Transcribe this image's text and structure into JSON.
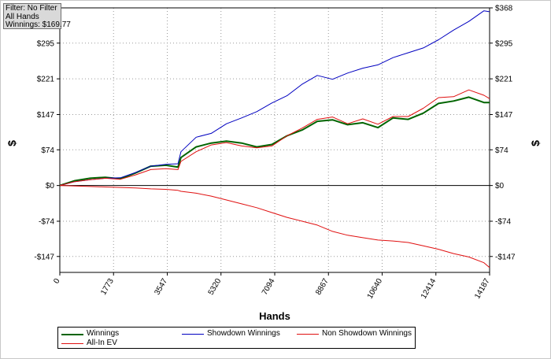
{
  "filter_box": {
    "lines": [
      "Filter: No Filter",
      "All Hands",
      "Winnings: $169.77"
    ]
  },
  "chart_data": {
    "type": "line",
    "xlabel": "Hands",
    "ylabel": "$",
    "xlim": [
      0,
      14187
    ],
    "ylim": [
      -180,
      368
    ],
    "x_ticks": [
      0,
      1773,
      3547,
      5320,
      7094,
      8867,
      10640,
      12414,
      14187
    ],
    "x_tick_labels": [
      "0",
      "1773",
      "3547",
      "5320",
      "7094",
      "8867",
      "10640",
      "12414",
      "14187"
    ],
    "y_ticks": [
      368,
      295,
      221,
      147,
      74,
      0,
      -74,
      -147
    ],
    "y_tick_labels": [
      "$368",
      "$295",
      "$221",
      "$147",
      "$74",
      "$0",
      "-$74",
      "-$147"
    ],
    "grid": true,
    "legend_position": "bottom",
    "series": [
      {
        "name": "Winnings",
        "color": "#006400",
        "x": [
          0,
          500,
          1000,
          1500,
          2000,
          2500,
          3000,
          3500,
          3900,
          4000,
          4500,
          5000,
          5500,
          6000,
          6500,
          7000,
          7500,
          8000,
          8500,
          9000,
          9500,
          10000,
          10500,
          11000,
          11500,
          12000,
          12500,
          13000,
          13500,
          14000,
          14187
        ],
        "y": [
          0,
          10,
          15,
          17,
          14,
          26,
          40,
          42,
          38,
          58,
          80,
          88,
          92,
          88,
          80,
          85,
          103,
          115,
          133,
          136,
          126,
          130,
          120,
          140,
          137,
          150,
          170,
          175,
          183,
          172,
          172
        ]
      },
      {
        "name": "Showdown Winnings",
        "color": "#0000c0",
        "x": [
          0,
          500,
          1000,
          1500,
          2000,
          2500,
          3000,
          3500,
          3900,
          4000,
          4500,
          5000,
          5500,
          6000,
          6500,
          7000,
          7500,
          8000,
          8500,
          9000,
          9500,
          10000,
          10500,
          11000,
          11500,
          12000,
          12500,
          13000,
          13500,
          14000,
          14187
        ],
        "y": [
          0,
          8,
          12,
          15,
          16,
          27,
          40,
          44,
          45,
          70,
          100,
          108,
          128,
          140,
          153,
          171,
          186,
          210,
          228,
          220,
          233,
          243,
          250,
          265,
          275,
          285,
          302,
          322,
          340,
          362,
          360
        ]
      },
      {
        "name": "Non Showdown Winnings",
        "color": "#e01010",
        "x": [
          0,
          500,
          1000,
          1500,
          2000,
          2500,
          3000,
          3500,
          3900,
          4000,
          4500,
          5000,
          5500,
          6000,
          6500,
          7000,
          7500,
          8000,
          8500,
          9000,
          9500,
          10000,
          10500,
          11000,
          11500,
          12000,
          12500,
          13000,
          13500,
          14000,
          14187
        ],
        "y": [
          0,
          8,
          12,
          15,
          13,
          22,
          33,
          35,
          33,
          50,
          70,
          84,
          89,
          82,
          78,
          82,
          103,
          119,
          137,
          142,
          128,
          138,
          127,
          143,
          143,
          160,
          182,
          184,
          198,
          187,
          180
        ]
      },
      {
        "name": "All-In EV",
        "color": "#e01010",
        "x": [
          0,
          500,
          1000,
          1500,
          2000,
          2500,
          3000,
          3500,
          3900,
          4000,
          4500,
          5000,
          5500,
          6000,
          6500,
          7000,
          7500,
          8000,
          8500,
          9000,
          9500,
          10000,
          10500,
          11000,
          11500,
          12000,
          12500,
          13000,
          13500,
          14000,
          14187
        ],
        "y": [
          0,
          -1,
          -2,
          -3,
          -4,
          -5,
          -7,
          -8,
          -10,
          -12,
          -16,
          -22,
          -30,
          -38,
          -46,
          -56,
          -66,
          -74,
          -82,
          -95,
          -103,
          -108,
          -113,
          -115,
          -118,
          -125,
          -132,
          -141,
          -148,
          -160,
          -170
        ]
      }
    ]
  },
  "legend": {
    "items": [
      {
        "label": "Winnings",
        "color": "#006400"
      },
      {
        "label": "Showdown Winnings",
        "color": "#0000c0"
      },
      {
        "label": "Non Showdown Winnings",
        "color": "#e01010"
      },
      {
        "label": "All-In EV",
        "color": "#e01010"
      }
    ]
  }
}
